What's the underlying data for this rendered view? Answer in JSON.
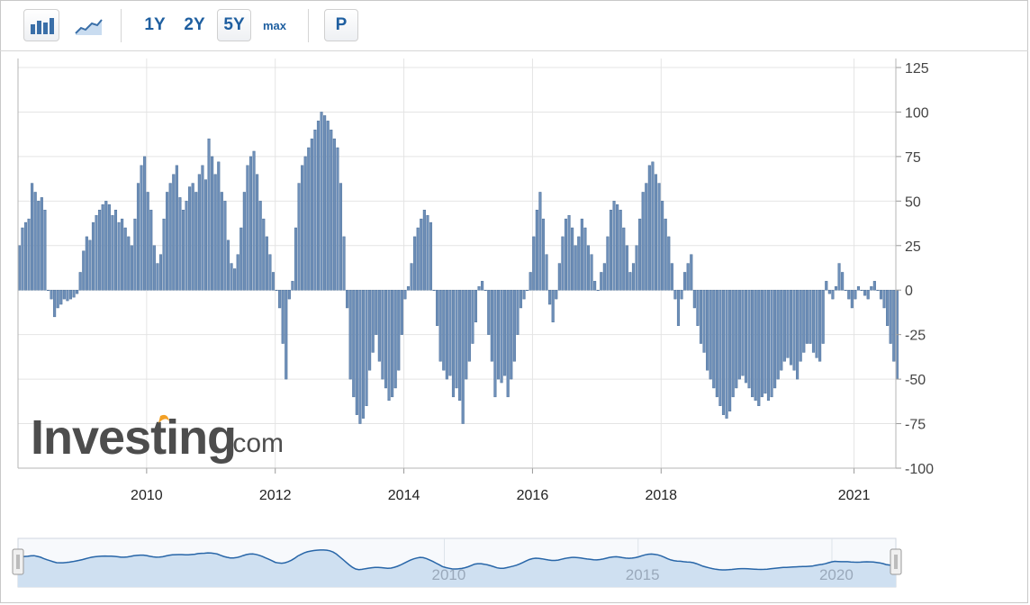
{
  "toolbar": {
    "period_1y": "1Y",
    "period_2y": "2Y",
    "period_5y": "5Y",
    "period_max": "max",
    "p_button": "P",
    "active_period": "5Y",
    "icons": [
      "bar-chart-icon",
      "line-chart-icon"
    ]
  },
  "watermark": {
    "brand": "Investing",
    "suffix": ".com"
  },
  "colors": {
    "bar": "#6e8fb8",
    "bar_edge": "#3f6592",
    "navigator_line": "#2866a8",
    "navigator_fill": "#cfe0f1",
    "accent": "#1f5fa0"
  },
  "chart_data": {
    "type": "bar",
    "xlabel": "",
    "ylabel": "",
    "ylim": [
      -100,
      125
    ],
    "yticks": [
      125,
      100,
      75,
      50,
      25,
      0,
      -25,
      -50,
      -75,
      -100
    ],
    "y_axis_position": "right",
    "x_range": [
      2008.0,
      2021.65
    ],
    "xticks": [
      {
        "value": 2010,
        "label": "2010"
      },
      {
        "value": 2012,
        "label": "2012"
      },
      {
        "value": 2014,
        "label": "2014"
      },
      {
        "value": 2016,
        "label": "2016"
      },
      {
        "value": 2018,
        "label": "2018"
      },
      {
        "value": 2021,
        "label": "2021"
      }
    ],
    "grid": true,
    "series": [
      {
        "x_start": 2008.0,
        "x_step": 0.05,
        "values": [
          25,
          35,
          38,
          40,
          60,
          55,
          50,
          52,
          45,
          0,
          -5,
          -15,
          -10,
          -8,
          -5,
          -6,
          -5,
          -4,
          -2,
          10,
          22,
          30,
          28,
          38,
          42,
          45,
          48,
          50,
          48,
          42,
          45,
          38,
          40,
          35,
          30,
          25,
          40,
          60,
          70,
          75,
          55,
          45,
          25,
          15,
          20,
          40,
          55,
          60,
          65,
          70,
          52,
          45,
          50,
          58,
          60,
          55,
          65,
          70,
          62,
          85,
          75,
          65,
          72,
          55,
          50,
          28,
          15,
          12,
          20,
          35,
          55,
          70,
          75,
          78,
          65,
          50,
          40,
          30,
          20,
          10,
          0,
          -10,
          -30,
          -50,
          -5,
          5,
          35,
          60,
          70,
          75,
          80,
          85,
          90,
          95,
          100,
          98,
          95,
          90,
          85,
          80,
          60,
          30,
          -10,
          -50,
          -60,
          -70,
          -75,
          -72,
          -65,
          -45,
          -35,
          -25,
          -40,
          -50,
          -55,
          -62,
          -60,
          -55,
          -45,
          -25,
          -5,
          2,
          15,
          30,
          35,
          40,
          45,
          42,
          38,
          0,
          -20,
          -40,
          -45,
          -50,
          -48,
          -60,
          -55,
          -62,
          -75,
          -50,
          -40,
          -30,
          -18,
          2,
          5,
          0,
          -25,
          -40,
          -60,
          -50,
          -52,
          -48,
          -60,
          -50,
          -40,
          -25,
          -10,
          -5,
          0,
          10,
          30,
          45,
          55,
          40,
          20,
          -8,
          -18,
          -5,
          15,
          30,
          40,
          42,
          35,
          25,
          30,
          40,
          35,
          25,
          20,
          5,
          0,
          10,
          15,
          30,
          45,
          50,
          48,
          45,
          35,
          25,
          10,
          15,
          25,
          40,
          55,
          60,
          70,
          72,
          65,
          60,
          50,
          40,
          30,
          15,
          -5,
          -20,
          -5,
          10,
          15,
          20,
          -10,
          -20,
          -30,
          -35,
          -45,
          -50,
          -55,
          -60,
          -65,
          -70,
          -72,
          -68,
          -60,
          -55,
          -50,
          -48,
          -52,
          -55,
          -60,
          -62,
          -65,
          -60,
          -58,
          -62,
          -60,
          -55,
          -50,
          -45,
          -40,
          -38,
          -42,
          -45,
          -50,
          -40,
          -35,
          -30,
          -30,
          -35,
          -38,
          -40,
          -30,
          5,
          -2,
          -5,
          2,
          15,
          10,
          0,
          -5,
          -10,
          -5,
          2,
          0,
          -3,
          -5,
          2,
          5,
          0,
          -5,
          -10,
          -20,
          -30,
          -40,
          -50
        ]
      }
    ],
    "navigator": {
      "labels": [
        {
          "value": 2010,
          "label": "2010"
        },
        {
          "value": 2015,
          "label": "2015"
        },
        {
          "value": 2020,
          "label": "2020"
        }
      ],
      "x_range": [
        1999.0,
        2021.65
      ],
      "grid": [
        2010,
        2015,
        2020
      ]
    }
  }
}
